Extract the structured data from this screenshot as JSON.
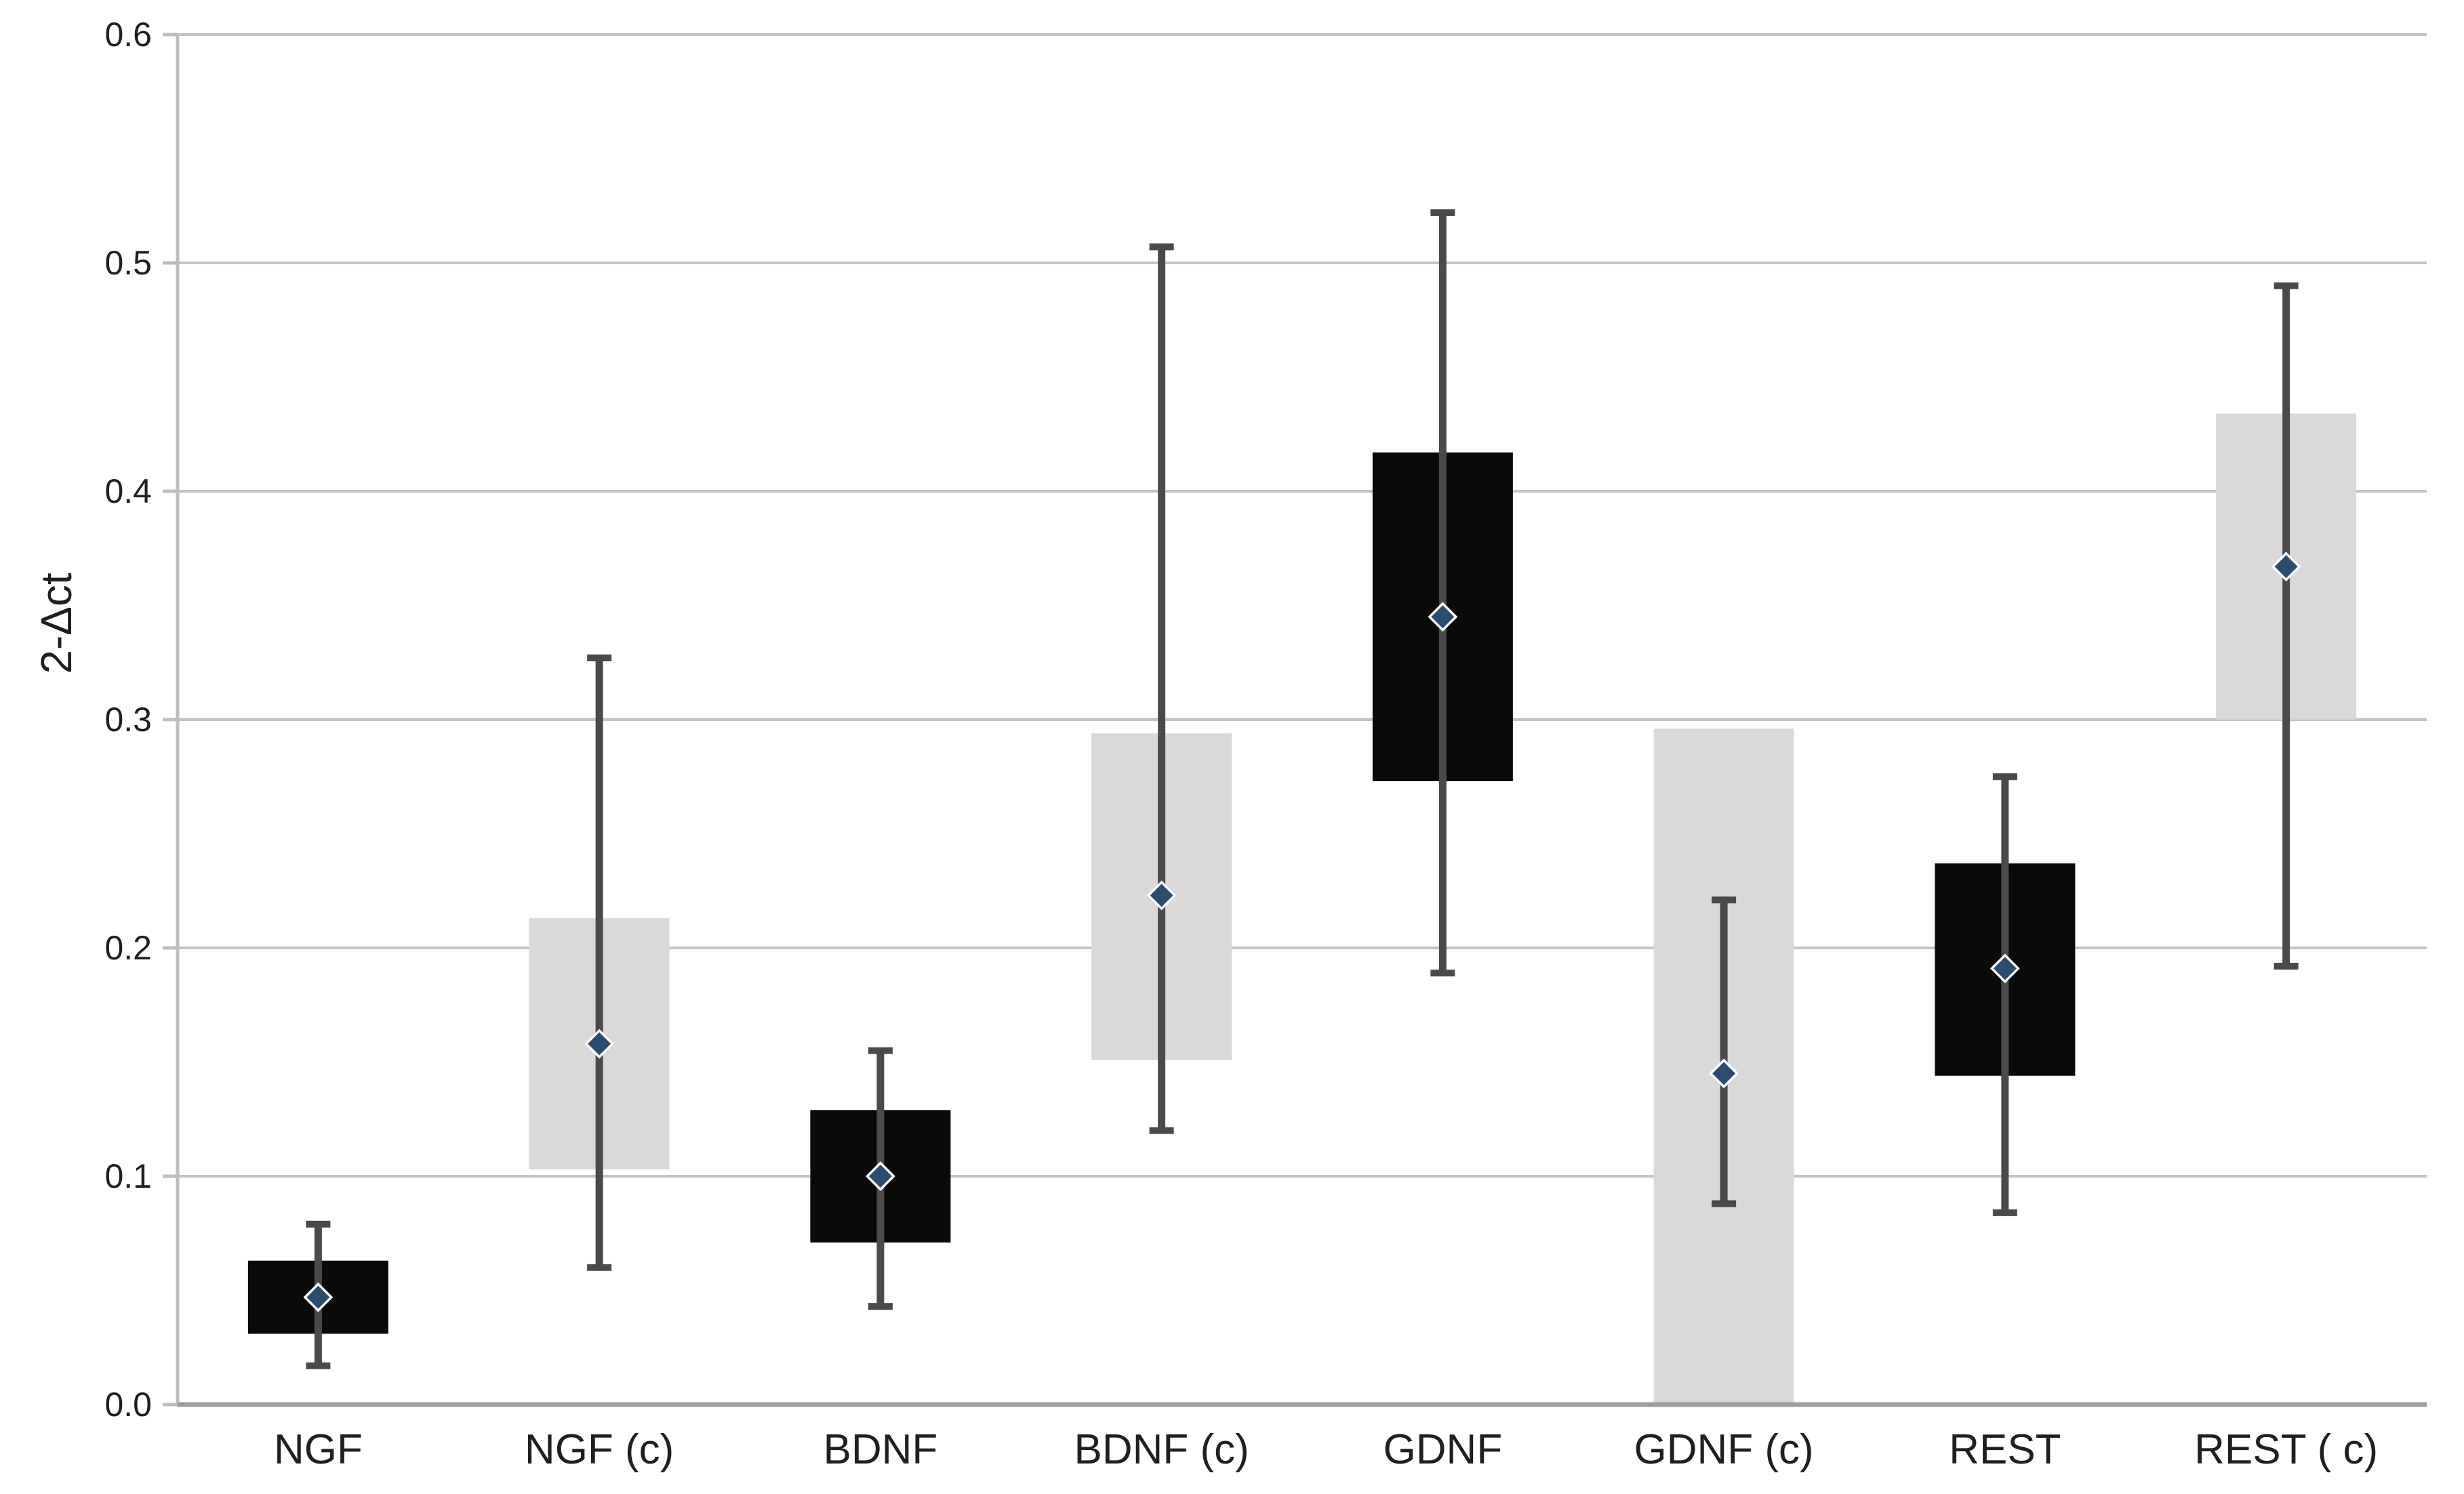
{
  "chart_data": {
    "type": "box",
    "title": "",
    "ylabel": "2-Δct",
    "xlabel": "",
    "ylim": [
      0,
      0.6
    ],
    "ytick_step": 0.1,
    "ytick_labels": [
      "0.0",
      "0.1",
      "0.2",
      "0.3",
      "0.4",
      "0.5",
      "0.6"
    ],
    "grid": "horizontal-only",
    "legend": "none",
    "marker_shape": "diamond",
    "categories": [
      "NGF",
      "NGF (c)",
      "BDNF",
      "BDNF (c)",
      "GDNF",
      "GDNF (c)",
      "REST",
      "REST ( c)"
    ],
    "series": [
      {
        "name": "NGF",
        "fill": "black",
        "box_low": 0.031,
        "box_high": 0.063,
        "whisker_low": 0.017,
        "whisker_high": 0.079,
        "mean": 0.047
      },
      {
        "name": "NGF (c)",
        "fill": "gray",
        "box_low": 0.103,
        "box_high": 0.213,
        "whisker_low": 0.06,
        "whisker_high": 0.327,
        "mean": 0.158
      },
      {
        "name": "BDNF",
        "fill": "black",
        "box_low": 0.071,
        "box_high": 0.129,
        "whisker_low": 0.043,
        "whisker_high": 0.155,
        "mean": 0.1
      },
      {
        "name": "BDNF (c)",
        "fill": "gray",
        "box_low": 0.151,
        "box_high": 0.294,
        "whisker_low": 0.12,
        "whisker_high": 0.507,
        "mean": 0.223
      },
      {
        "name": "GDNF",
        "fill": "black",
        "box_low": 0.273,
        "box_high": 0.417,
        "whisker_low": 0.189,
        "whisker_high": 0.522,
        "mean": 0.345
      },
      {
        "name": "GDNF (c)",
        "fill": "gray",
        "box_low": 0.0,
        "box_high": 0.296,
        "whisker_low": 0.088,
        "whisker_high": 0.221,
        "mean": 0.145
      },
      {
        "name": "REST",
        "fill": "black",
        "box_low": 0.144,
        "box_high": 0.237,
        "whisker_low": 0.084,
        "whisker_high": 0.275,
        "mean": 0.191
      },
      {
        "name": "REST ( c)",
        "fill": "gray",
        "box_low": 0.3,
        "box_high": 0.434,
        "whisker_low": 0.192,
        "whisker_high": 0.49,
        "mean": 0.367
      }
    ],
    "colors": {
      "box_black": "#0a0a0a",
      "box_gray": "#d9d9d9",
      "whisker": "#4a4a4a",
      "marker_fill": "#2b4c6f",
      "marker_ring": "#ffffff",
      "gridline": "#c3c3c3",
      "y_axis_line": "#bdbdbd",
      "x_axis_line": "#9e9e9e",
      "text": "#1f1f1f"
    }
  }
}
